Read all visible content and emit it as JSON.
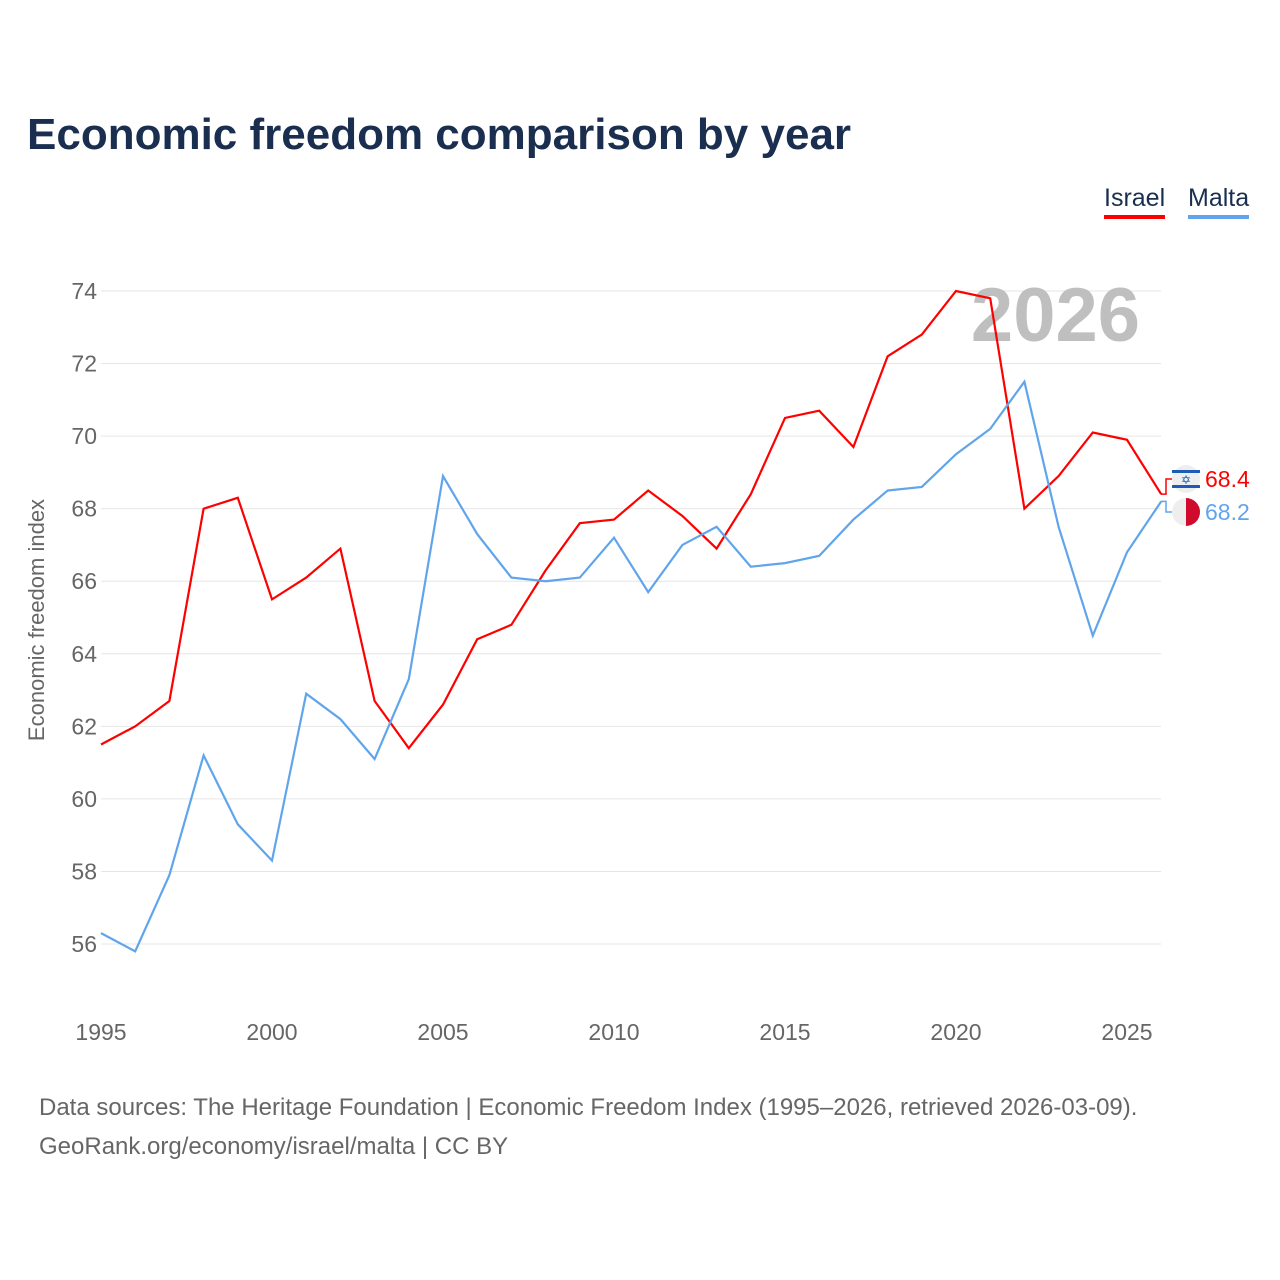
{
  "chart_data": {
    "type": "line",
    "title": "Economic freedom comparison by year",
    "xlabel": "",
    "ylabel": "Economic freedom index",
    "xlim": [
      1995,
      2026
    ],
    "ylim": [
      54.5,
      74.5
    ],
    "grid": true,
    "legend_placement": "top-right",
    "year_watermark": "2026",
    "x_ticks": [
      1995,
      2000,
      2005,
      2010,
      2015,
      2020,
      2025
    ],
    "y_ticks": [
      56,
      58,
      60,
      62,
      64,
      66,
      68,
      70,
      72,
      74
    ],
    "x": [
      1995,
      1996,
      1997,
      1998,
      1999,
      2000,
      2001,
      2002,
      2003,
      2004,
      2005,
      2006,
      2007,
      2008,
      2009,
      2010,
      2011,
      2012,
      2013,
      2014,
      2015,
      2016,
      2017,
      2018,
      2019,
      2020,
      2021,
      2022,
      2023,
      2024,
      2025,
      2026
    ],
    "series": [
      {
        "name": "Israel",
        "color": "#ff0000",
        "end_label": "68.4",
        "values": [
          61.5,
          62.0,
          62.7,
          68.0,
          68.3,
          65.5,
          66.1,
          66.9,
          62.7,
          61.4,
          62.6,
          64.4,
          64.8,
          66.3,
          67.6,
          67.7,
          68.5,
          67.8,
          66.9,
          68.4,
          70.5,
          70.7,
          69.7,
          72.2,
          72.8,
          74.0,
          73.8,
          68.0,
          68.9,
          70.1,
          69.9,
          68.4
        ]
      },
      {
        "name": "Malta",
        "color": "#60a5ec",
        "end_label": "68.2",
        "values": [
          56.3,
          55.8,
          57.9,
          61.2,
          59.3,
          58.3,
          62.9,
          62.2,
          61.1,
          63.3,
          68.9,
          67.3,
          66.1,
          66.0,
          66.1,
          67.2,
          65.7,
          67.0,
          67.5,
          66.4,
          66.5,
          66.7,
          67.7,
          68.5,
          68.6,
          69.5,
          70.2,
          71.5,
          67.5,
          64.5,
          66.8,
          68.2
        ]
      }
    ]
  },
  "source_line1": "Data sources: The Heritage Foundation | Economic Freedom Index (1995–2026, retrieved 2026-03-09).",
  "source_line2": "GeoRank.org/economy/israel/malta | CC BY"
}
